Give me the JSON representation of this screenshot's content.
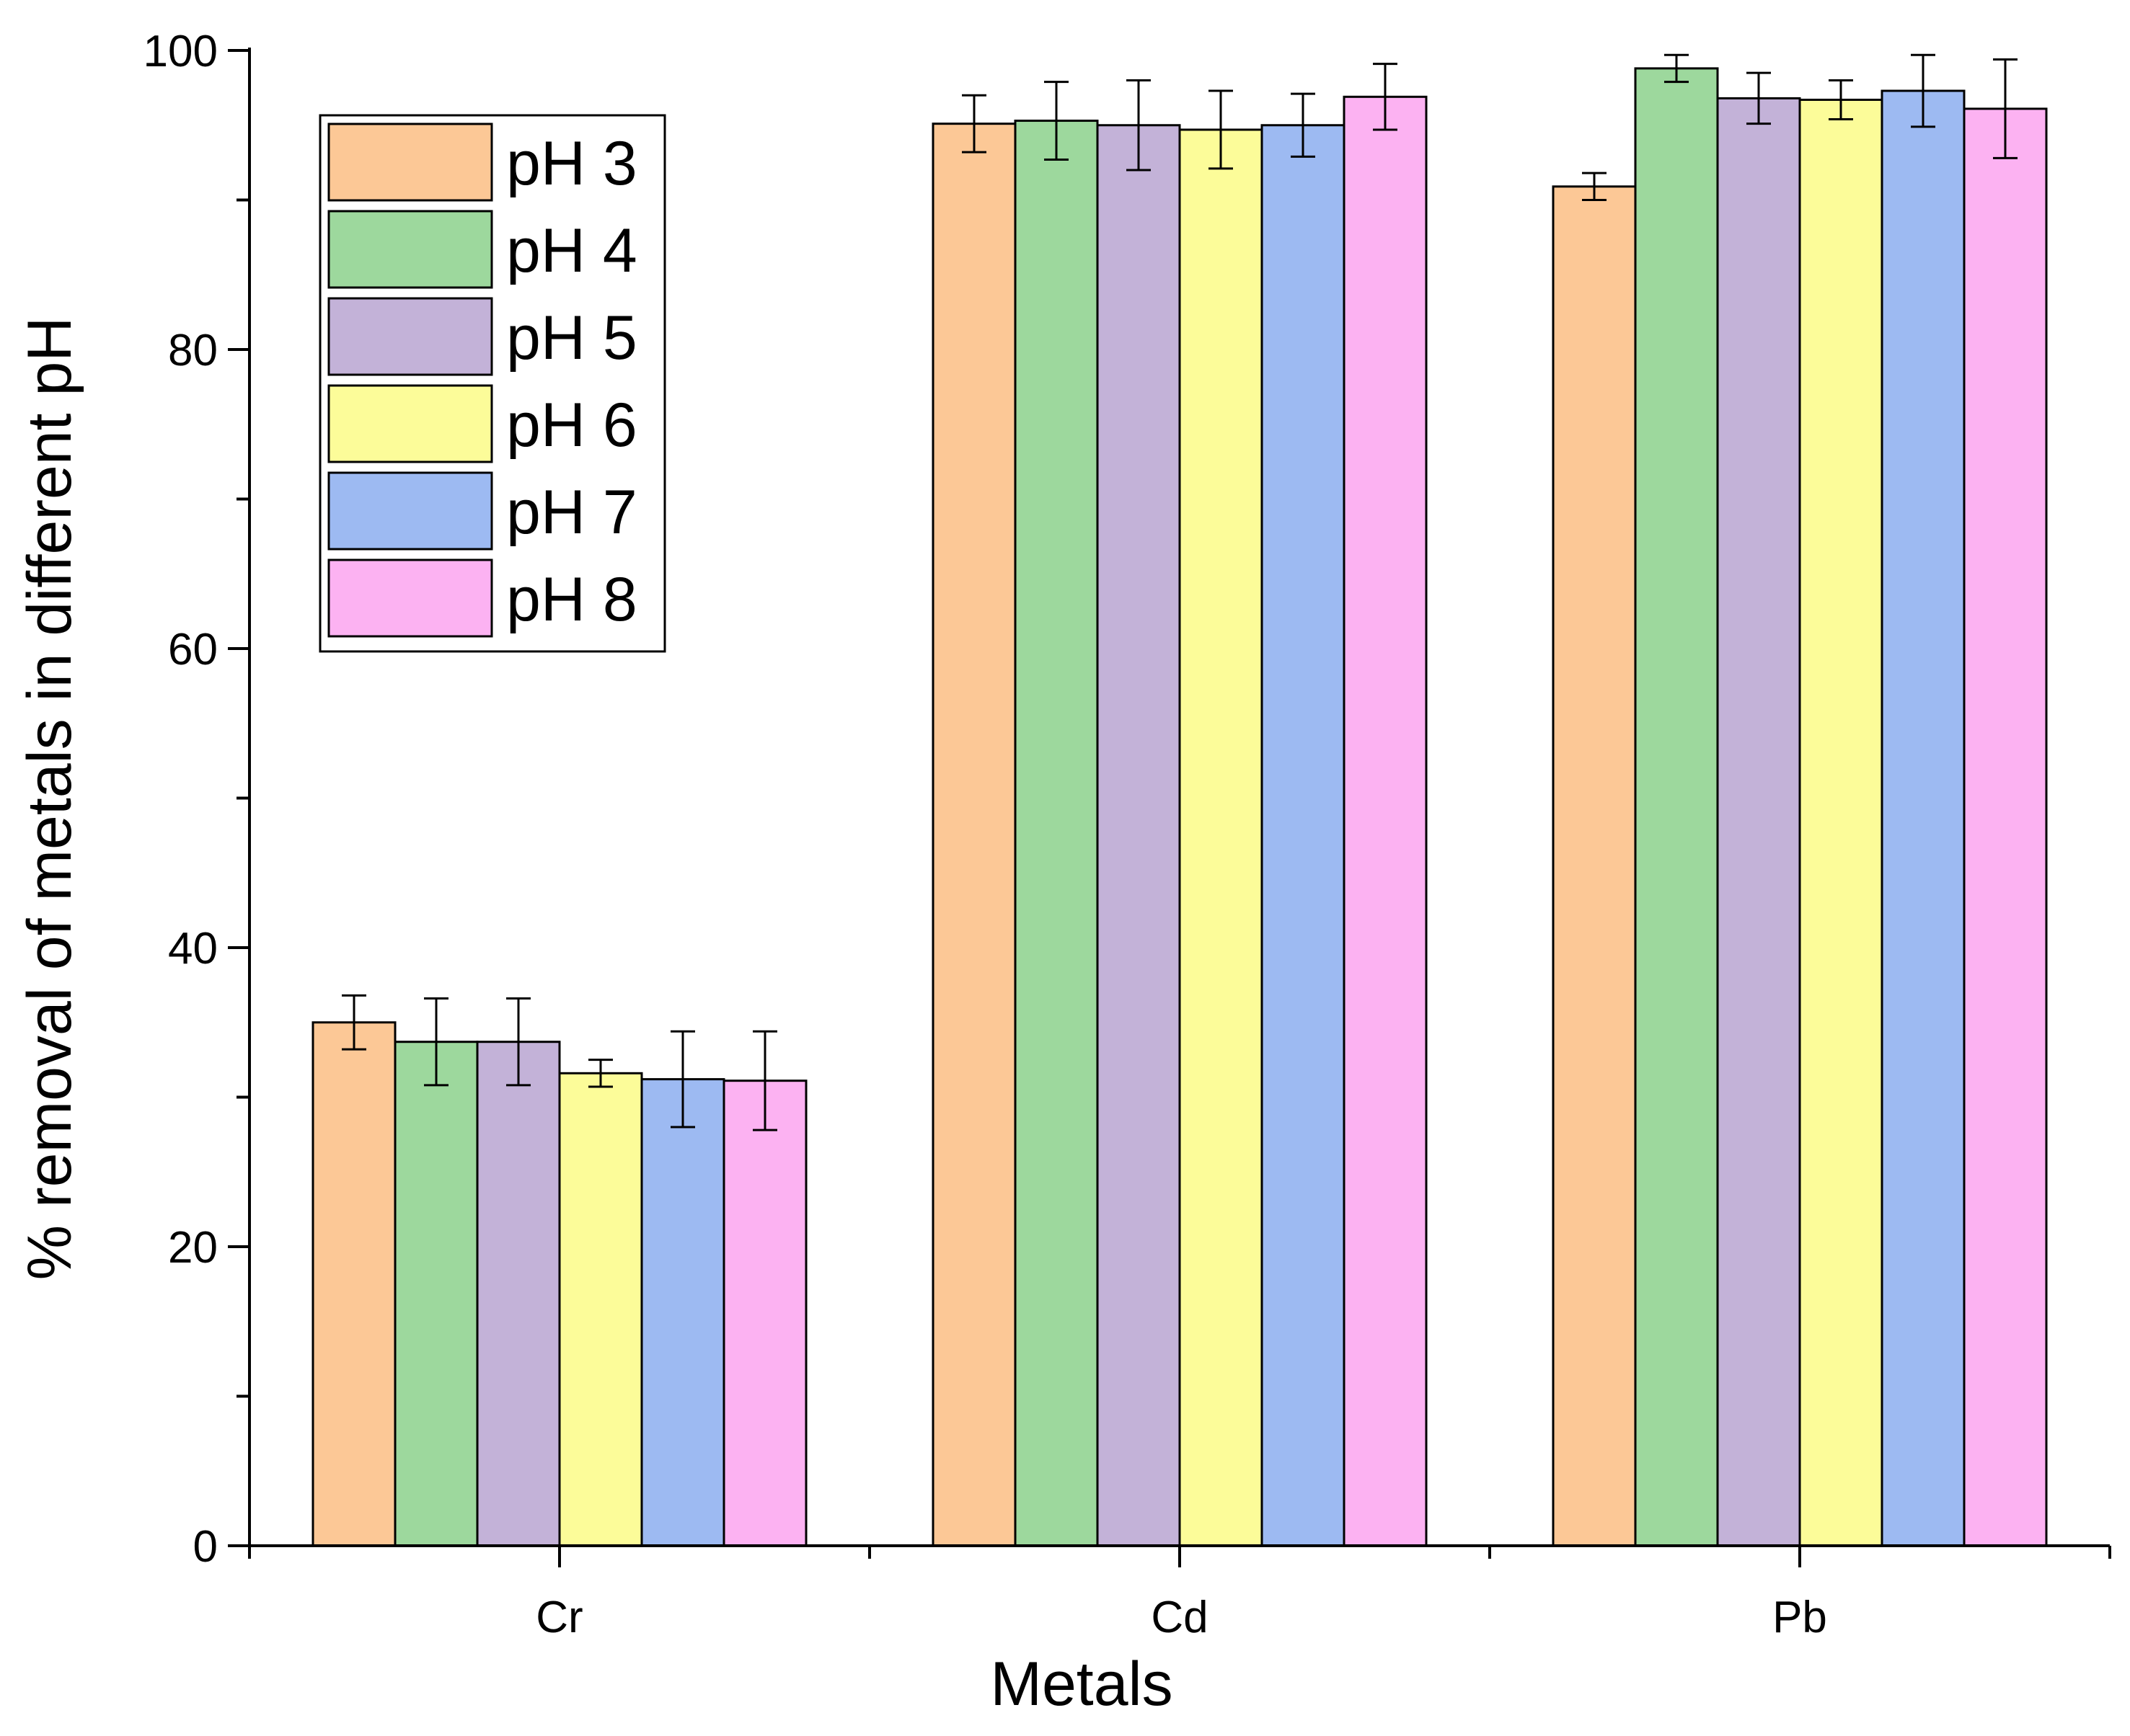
{
  "chart_data": {
    "type": "bar",
    "title": "",
    "xlabel": "Metals",
    "ylabel": "% removal of metals in different pH",
    "ylim": [
      0,
      100
    ],
    "yticks": [
      0,
      20,
      40,
      60,
      80,
      100
    ],
    "grid": false,
    "legend_position": "top-left",
    "categories": [
      "Cr",
      "Cd",
      "Pb"
    ],
    "series": [
      {
        "name": "pH 3",
        "color": "#FCC896",
        "values": [
          35.0,
          95.1,
          90.9
        ],
        "errors": [
          1.8,
          1.9,
          0.9
        ]
      },
      {
        "name": "pH 4",
        "color": "#9DD89D",
        "values": [
          33.7,
          95.3,
          98.8
        ],
        "errors": [
          2.9,
          2.6,
          0.9
        ]
      },
      {
        "name": "pH 5",
        "color": "#C3B2D8",
        "values": [
          33.7,
          95.0,
          96.8
        ],
        "errors": [
          2.9,
          3.0,
          1.7
        ]
      },
      {
        "name": "pH 6",
        "color": "#FCFC99",
        "values": [
          31.6,
          94.7,
          96.7
        ],
        "errors": [
          0.9,
          2.6,
          1.3
        ]
      },
      {
        "name": "pH 7",
        "color": "#9DBAF2",
        "values": [
          31.2,
          95.0,
          97.3
        ],
        "errors": [
          3.2,
          2.1,
          2.4
        ]
      },
      {
        "name": "pH 8",
        "color": "#FCB2F2",
        "values": [
          31.1,
          96.9,
          96.1
        ],
        "errors": [
          3.3,
          2.2,
          3.3
        ]
      }
    ]
  }
}
